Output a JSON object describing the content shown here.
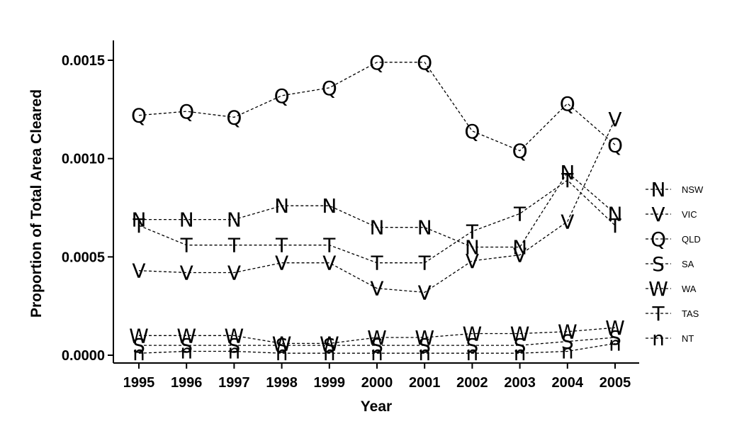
{
  "chart_data": {
    "type": "line",
    "xlabel": "Year",
    "ylabel": "Proportion of Total Area Cleared",
    "x": [
      1995,
      1996,
      1997,
      1998,
      1999,
      2000,
      2001,
      2002,
      2003,
      2004,
      2005
    ],
    "xticks": [
      "1995",
      "1996",
      "1997",
      "1998",
      "1999",
      "2000",
      "2001",
      "2002",
      "2003",
      "2004",
      "2005"
    ],
    "yticks": [
      {
        "value": 0.0,
        "label": "0.0000"
      },
      {
        "value": 0.0005,
        "label": "0.0005"
      },
      {
        "value": 0.001,
        "label": "0.0010"
      },
      {
        "value": 0.0015,
        "label": "0.0015"
      }
    ],
    "ylim": [
      -3e-05,
      0.00163
    ],
    "grid": false,
    "legend_position": "right",
    "series": [
      {
        "name": "NSW",
        "marker": "N",
        "values": [
          0.00069,
          0.00069,
          0.00069,
          0.00076,
          0.00076,
          0.00065,
          0.00065,
          0.00055,
          0.00055,
          0.00093,
          0.00072
        ]
      },
      {
        "name": "VIC",
        "marker": "V",
        "values": [
          0.00043,
          0.00042,
          0.00042,
          0.00047,
          0.00047,
          0.00034,
          0.00032,
          0.00048,
          0.00051,
          0.00068,
          0.0012
        ]
      },
      {
        "name": "QLD",
        "marker": "Q",
        "values": [
          0.00122,
          0.00124,
          0.00121,
          0.00132,
          0.00136,
          0.00149,
          0.00149,
          0.00114,
          0.00104,
          0.00128,
          0.00107
        ]
      },
      {
        "name": "SA",
        "marker": "S",
        "values": [
          5e-05,
          5e-05,
          5e-05,
          5e-05,
          5e-05,
          5e-05,
          5e-05,
          5e-05,
          5e-05,
          7e-05,
          9e-05
        ]
      },
      {
        "name": "WA",
        "marker": "W",
        "values": [
          0.0001,
          0.0001,
          0.0001,
          6e-05,
          6e-05,
          9e-05,
          9e-05,
          0.00011,
          0.00011,
          0.00012,
          0.00014
        ]
      },
      {
        "name": "TAS",
        "marker": "T",
        "values": [
          0.00066,
          0.00056,
          0.00056,
          0.00056,
          0.00056,
          0.00047,
          0.00047,
          0.00063,
          0.00072,
          0.00089,
          0.00066
        ]
      },
      {
        "name": "NT",
        "marker": "n",
        "values": [
          1e-05,
          2e-05,
          2e-05,
          1e-05,
          1e-05,
          1e-05,
          1e-05,
          1e-05,
          1e-05,
          2e-05,
          6e-05
        ]
      }
    ]
  }
}
